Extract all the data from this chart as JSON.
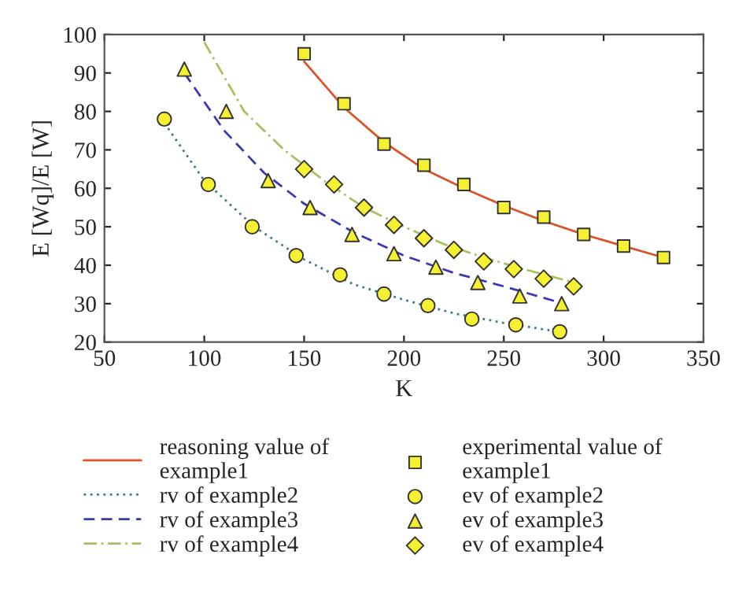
{
  "chart_data": {
    "type": "line",
    "xlabel": "K",
    "ylabel": "E [Wq]/E [W]",
    "xlim": [
      50,
      350
    ],
    "ylim": [
      20,
      100
    ],
    "xticks": [
      50,
      100,
      150,
      200,
      250,
      300,
      350
    ],
    "yticks": [
      20,
      30,
      40,
      50,
      60,
      70,
      80,
      90,
      100
    ],
    "grid": false,
    "legend": "bottom",
    "series": [
      {
        "name": "reasoning value of\nexample1",
        "color": "#d9542b",
        "line_style": "solid",
        "marker": "none",
        "x": [
          150,
          170,
          190,
          210,
          230,
          250,
          270,
          290,
          310,
          330
        ],
        "values": [
          93,
          81,
          72,
          65,
          60,
          55.5,
          51.5,
          48,
          45,
          42
        ]
      },
      {
        "name": "rv of example2",
        "color": "#3f7a8a",
        "line_style": "dotted",
        "marker": "none",
        "x": [
          80,
          100,
          125,
          150,
          175,
          200,
          225,
          250,
          280
        ],
        "values": [
          77,
          62,
          50,
          41.5,
          35,
          31,
          27.5,
          25,
          22.5
        ]
      },
      {
        "name": "rv of example3",
        "color": "#3a3ab0",
        "line_style": "dashed",
        "marker": "none",
        "x": [
          90,
          110,
          130,
          150,
          175,
          200,
          225,
          250,
          280
        ],
        "values": [
          90,
          75,
          64,
          56,
          48.5,
          42.5,
          38,
          34.5,
          30
        ]
      },
      {
        "name": "rv of example4",
        "color": "#a8c060",
        "line_style": "dashdot",
        "marker": "none",
        "x": [
          100,
          120,
          140,
          160,
          180,
          200,
          220,
          240,
          260,
          285
        ],
        "values": [
          98,
          80,
          70,
          62,
          55,
          50,
          45.5,
          42,
          39,
          35.5
        ]
      },
      {
        "name": "experimental value of\nexample1",
        "type": "scatter",
        "color": "#f5f032",
        "marker": "square",
        "x": [
          150,
          170,
          190,
          210,
          230,
          250,
          270,
          290,
          310,
          330
        ],
        "values": [
          95,
          82,
          71.5,
          66,
          61,
          55,
          52.5,
          48,
          45,
          42
        ]
      },
      {
        "name": "ev of example2",
        "type": "scatter",
        "color": "#f5f032",
        "marker": "circle",
        "x": [
          80,
          102,
          124,
          146,
          168,
          190,
          212,
          234,
          256,
          278
        ],
        "values": [
          78,
          61,
          50,
          42.5,
          37.5,
          32.5,
          29.5,
          26,
          24.5,
          22.7
        ]
      },
      {
        "name": "ev of example3",
        "type": "scatter",
        "color": "#f5f032",
        "marker": "triangle",
        "x": [
          90,
          111,
          132,
          153,
          174,
          195,
          216,
          237,
          258,
          279
        ],
        "values": [
          91,
          80,
          62,
          55,
          48,
          43,
          39.5,
          35.5,
          32,
          30
        ]
      },
      {
        "name": "ev of example4",
        "type": "scatter",
        "color": "#f5f032",
        "marker": "diamond",
        "x": [
          150,
          165,
          180,
          195,
          210,
          225,
          240,
          255,
          270,
          285
        ],
        "values": [
          65,
          61,
          55,
          50.5,
          47,
          44,
          41,
          39,
          36.5,
          34.5
        ]
      }
    ]
  }
}
